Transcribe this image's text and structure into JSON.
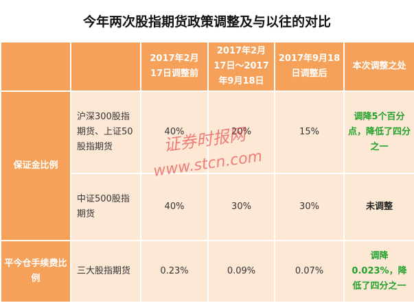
{
  "title": "今年两次股指期货政策调整及与以往的对比",
  "header": {
    "col0": "",
    "col1": "",
    "col2": "2017年2月17日调整前",
    "col3": "2017年2月17日～2017年9月18日",
    "col4": "2017年9月18日调整后",
    "col5": "本次调整之处"
  },
  "rows": [
    {
      "category": "保证金比例",
      "item": "沪深300股指期货、上证50股指期货",
      "v1": "40%",
      "v2": "20%",
      "v3": "15%",
      "change": "调降5个百分点，降低了四分之一"
    },
    {
      "item": "中证500股指期货",
      "v1": "40%",
      "v2": "30%",
      "v3": "30%",
      "change": "未调整"
    },
    {
      "category": "平今仓手续费比例",
      "item": "三大股指期货",
      "v1": "0.23%",
      "v2": "0.09%",
      "v3": "0.07%",
      "change": "调降0.023%，降低了四分之一"
    }
  ],
  "watermark": {
    "line1": "证券时报网",
    "line2": "www.stcn.com",
    "color": "#e0262b"
  },
  "colors": {
    "header_bg": "#f5a15a",
    "cell_bg": "#fde8d6",
    "highlight_green": "#22a12c"
  }
}
